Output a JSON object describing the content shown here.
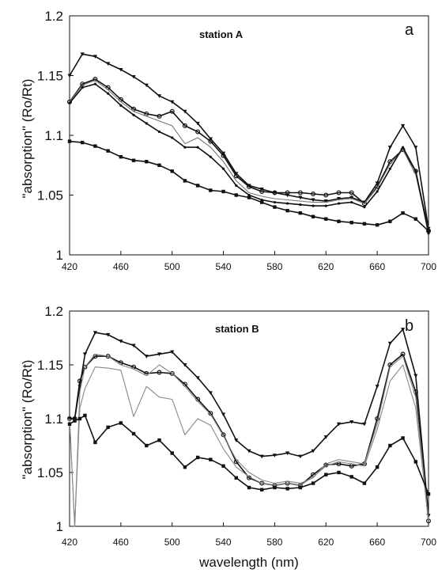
{
  "figure": {
    "panel_a": {
      "letter": "a",
      "station_label": "station A"
    },
    "panel_b": {
      "letter": "b",
      "station_label": "station B"
    }
  },
  "chart_data": [
    {
      "type": "line",
      "panel": "a",
      "annotations": [
        "station A",
        "a"
      ],
      "xlabel": "",
      "ylabel": "\"absorption\" (Ro/Rt)",
      "xlim": [
        420,
        700
      ],
      "ylim": [
        1,
        1.2
      ],
      "x_ticks": [
        420,
        460,
        500,
        540,
        580,
        620,
        660,
        700
      ],
      "y_ticks": [
        "1",
        "1.05",
        "1.1",
        "1.15",
        "1.2"
      ],
      "grid": false,
      "legend": "none",
      "x": [
        420,
        430,
        440,
        450,
        460,
        470,
        480,
        490,
        500,
        510,
        520,
        530,
        540,
        550,
        560,
        570,
        580,
        590,
        600,
        610,
        620,
        630,
        640,
        650,
        660,
        670,
        680,
        690,
        700
      ],
      "series": [
        {
          "color": "#111111",
          "marker": "triangle",
          "values": [
            1.15,
            1.168,
            1.166,
            1.16,
            1.155,
            1.149,
            1.142,
            1.133,
            1.128,
            1.12,
            1.11,
            1.097,
            1.085,
            1.068,
            1.058,
            1.055,
            1.052,
            1.05,
            1.048,
            1.046,
            1.045,
            1.047,
            1.048,
            1.044,
            1.06,
            1.09,
            1.108,
            1.09,
            1.022
          ]
        },
        {
          "color": "#111111",
          "marker": "circle",
          "values": [
            1.128,
            1.143,
            1.147,
            1.14,
            1.13,
            1.122,
            1.118,
            1.116,
            1.12,
            1.108,
            1.103,
            1.095,
            1.083,
            1.066,
            1.057,
            1.053,
            1.052,
            1.052,
            1.052,
            1.051,
            1.05,
            1.052,
            1.052,
            1.043,
            1.057,
            1.078,
            1.088,
            1.07,
            1.02
          ]
        },
        {
          "color": "#777777",
          "marker": "none",
          "values": [
            1.128,
            1.142,
            1.146,
            1.138,
            1.128,
            1.12,
            1.116,
            1.112,
            1.108,
            1.093,
            1.098,
            1.09,
            1.078,
            1.062,
            1.052,
            1.049,
            1.047,
            1.046,
            1.045,
            1.044,
            1.044,
            1.046,
            1.047,
            1.043,
            1.056,
            1.076,
            1.088,
            1.067,
            1.02
          ]
        },
        {
          "color": "#111111",
          "marker": "small",
          "values": [
            1.127,
            1.14,
            1.143,
            1.135,
            1.125,
            1.117,
            1.11,
            1.103,
            1.098,
            1.09,
            1.09,
            1.082,
            1.072,
            1.058,
            1.05,
            1.046,
            1.044,
            1.043,
            1.042,
            1.041,
            1.041,
            1.043,
            1.044,
            1.04,
            1.053,
            1.072,
            1.09,
            1.07,
            1.018
          ]
        },
        {
          "color": "#111111",
          "marker": "square",
          "values": [
            1.095,
            1.094,
            1.091,
            1.087,
            1.082,
            1.079,
            1.078,
            1.075,
            1.07,
            1.062,
            1.058,
            1.054,
            1.053,
            1.05,
            1.048,
            1.044,
            1.04,
            1.037,
            1.035,
            1.032,
            1.03,
            1.028,
            1.027,
            1.026,
            1.025,
            1.028,
            1.035,
            1.03,
            1.02
          ]
        }
      ]
    },
    {
      "type": "line",
      "panel": "b",
      "annotations": [
        "station B",
        "b"
      ],
      "xlabel": "wavelength (nm)",
      "ylabel": "\"absorption\" (Ro/Rt)",
      "xlim": [
        420,
        700
      ],
      "ylim": [
        1,
        1.2
      ],
      "x_ticks": [
        420,
        460,
        500,
        540,
        580,
        620,
        660,
        700
      ],
      "y_ticks": [
        "1",
        "1.05",
        "1.1",
        "1.15",
        "1.2"
      ],
      "grid": false,
      "legend": "none",
      "x": [
        420,
        424,
        428,
        432,
        440,
        450,
        460,
        470,
        480,
        490,
        500,
        510,
        520,
        530,
        540,
        550,
        560,
        570,
        580,
        590,
        600,
        610,
        620,
        630,
        640,
        650,
        660,
        670,
        680,
        690,
        700
      ],
      "series": [
        {
          "color": "#111111",
          "marker": "triangle",
          "values": [
            1.1,
            1.1,
            1.13,
            1.16,
            1.18,
            1.178,
            1.172,
            1.168,
            1.158,
            1.16,
            1.162,
            1.15,
            1.138,
            1.124,
            1.104,
            1.08,
            1.07,
            1.065,
            1.066,
            1.068,
            1.065,
            1.07,
            1.083,
            1.095,
            1.097,
            1.095,
            1.13,
            1.17,
            1.183,
            1.14,
            1.01
          ]
        },
        {
          "color": "#111111",
          "marker": "circle",
          "values": [
            1.1,
            1.1,
            1.135,
            1.148,
            1.158,
            1.158,
            1.152,
            1.148,
            1.142,
            1.143,
            1.142,
            1.132,
            1.118,
            1.105,
            1.085,
            1.06,
            1.045,
            1.04,
            1.038,
            1.04,
            1.038,
            1.048,
            1.057,
            1.058,
            1.056,
            1.058,
            1.1,
            1.15,
            1.16,
            1.125,
            1.005
          ]
        },
        {
          "color": "#888888",
          "marker": "none",
          "values": [
            1.1,
            1.0,
            1.125,
            1.148,
            1.16,
            1.158,
            1.15,
            1.146,
            1.14,
            1.15,
            1.142,
            1.13,
            1.116,
            1.104,
            1.084,
            1.062,
            1.05,
            1.043,
            1.04,
            1.042,
            1.04,
            1.045,
            1.058,
            1.062,
            1.06,
            1.058,
            1.095,
            1.148,
            1.158,
            1.12,
            1.005
          ]
        },
        {
          "color": "#888888",
          "marker": "none",
          "values": [
            1.1,
            1.0,
            1.11,
            1.128,
            1.148,
            1.147,
            1.145,
            1.102,
            1.13,
            1.12,
            1.118,
            1.085,
            1.1,
            1.094,
            1.072,
            1.055,
            1.046,
            1.04,
            1.038,
            1.04,
            1.038,
            1.046,
            1.056,
            1.06,
            1.058,
            1.056,
            1.09,
            1.135,
            1.15,
            1.11,
            1.005
          ]
        },
        {
          "color": "#111111",
          "marker": "square",
          "values": [
            1.095,
            1.098,
            1.1,
            1.103,
            1.078,
            1.092,
            1.096,
            1.086,
            1.075,
            1.08,
            1.068,
            1.055,
            1.064,
            1.062,
            1.056,
            1.045,
            1.036,
            1.034,
            1.036,
            1.035,
            1.036,
            1.04,
            1.048,
            1.05,
            1.046,
            1.04,
            1.055,
            1.075,
            1.082,
            1.06,
            1.03
          ]
        }
      ]
    }
  ]
}
